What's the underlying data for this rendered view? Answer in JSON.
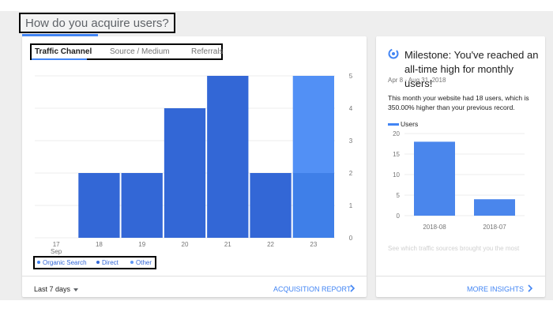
{
  "section": {
    "title": "How do you acquire users?"
  },
  "tabs": [
    {
      "label": "Traffic Channel",
      "active": true
    },
    {
      "label": "Source / Medium",
      "active": false
    },
    {
      "label": "Referrals",
      "active": false
    }
  ],
  "chart_data": [
    {
      "type": "bar",
      "categories": [
        "17\nSep",
        "18",
        "19",
        "20",
        "21",
        "22",
        "23"
      ],
      "series": [
        {
          "name": "Organic Search",
          "values": [
            0,
            0,
            0,
            0,
            0,
            0,
            2
          ]
        },
        {
          "name": "Direct",
          "values": [
            0,
            2,
            2,
            4,
            5,
            2,
            0
          ]
        },
        {
          "name": "Other",
          "values": [
            0,
            0,
            0,
            0,
            0,
            0,
            3
          ]
        }
      ],
      "stacked": true,
      "ylim": [
        0,
        5
      ],
      "yticks": [
        "0",
        "1",
        "2",
        "3",
        "4",
        "5"
      ],
      "y_axis_side": "right",
      "grid": true,
      "legend": "bottom-left"
    },
    {
      "type": "bar",
      "categories": [
        "2018-08",
        "2018-07"
      ],
      "series": [
        {
          "name": "Users",
          "values": [
            18,
            4
          ]
        }
      ],
      "ylim": [
        0,
        20
      ],
      "yticks": [
        "0",
        "5",
        "10",
        "15",
        "20"
      ],
      "grid": true,
      "legend": "top-left"
    }
  ],
  "legend": [
    {
      "label": "Organic Search",
      "color": "#4285f4"
    },
    {
      "label": "Direct",
      "color": "#3367d6"
    },
    {
      "label": "Other",
      "color": "#5e97f6"
    }
  ],
  "colors": {
    "organic": "#3f7fe8",
    "direct": "#3367d6",
    "other": "#5290f5",
    "users": "#4a86ec",
    "accent": "#4285f4"
  },
  "footer": {
    "range_label": "Last 7 days",
    "acquisition_link": "ACQUISITION REPORT",
    "insights_link": "MORE INSIGHTS"
  },
  "milestone": {
    "icon": "refresh-icon",
    "title": "Milestone: You've reached an all-time high for monthly users!",
    "date": "Apr 8 - Aug 31, 2018",
    "description": "This month your website had 18 users, which is 350.00% higher than your previous record.",
    "legend_label": "Users",
    "faded_text": "See which traffic sources brought you the most"
  }
}
